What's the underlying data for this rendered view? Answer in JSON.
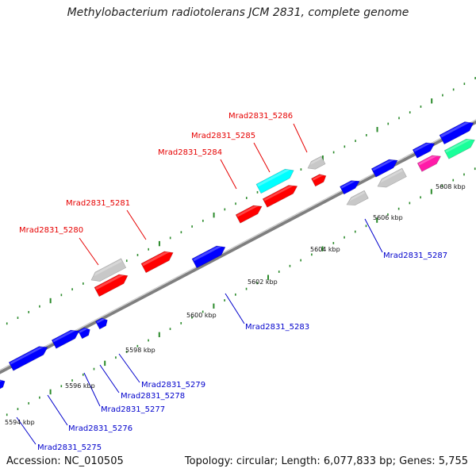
{
  "title": "Methylobacterium radiotolerans JCM 2831, complete genome",
  "accession": "Accession: NC_010505",
  "topology": "Topology: circular; Length: 6,077,833 bp; Genes: 5,755",
  "colors": {
    "backbone": "#888888",
    "ticks": "#2a8a2a",
    "red": "#ff0000",
    "blue": "#0000ff",
    "gray": "#c8c8c8",
    "cyan": "#00ffff",
    "magenta": "#ff1aa8",
    "green": "#1aff9a"
  },
  "kbp_labels": [
    "5594 kbp",
    "5596 kbp",
    "5598 kbp",
    "5600 kbp",
    "5602 kbp",
    "5604 kbp",
    "5606 kbp",
    "5608 kbp"
  ],
  "gene_labels_top": [
    "Mrad2831_5280",
    "Mrad2831_5281",
    "Mrad2831_5284",
    "Mrad2831_5285",
    "Mrad2831_5286"
  ],
  "gene_labels_bottom": [
    "Mrad2831_5275",
    "Mrad2831_5276",
    "Mrad2831_5277",
    "Mrad2831_5278",
    "Mrad2831_5279",
    "Mrad2831_5283",
    "Mrad2831_5287"
  ],
  "features": [
    {
      "color": "blue",
      "strand": "outer"
    },
    {
      "color": "blue",
      "strand": "outer"
    },
    {
      "color": "blue",
      "strand": "outer"
    },
    {
      "color": "blue",
      "strand": "outer"
    },
    {
      "color": "blue",
      "strand": "outer"
    },
    {
      "color": "red",
      "strand": "inner"
    },
    {
      "color": "gray",
      "strand": "inner"
    },
    {
      "color": "red",
      "strand": "inner"
    },
    {
      "color": "blue",
      "strand": "outer"
    },
    {
      "color": "red",
      "strand": "inner"
    },
    {
      "color": "red",
      "strand": "inner"
    },
    {
      "color": "cyan",
      "strand": "inner"
    },
    {
      "color": "red",
      "strand": "inner"
    },
    {
      "color": "gray",
      "strand": "inner"
    },
    {
      "color": "blue",
      "strand": "outer"
    },
    {
      "color": "gray",
      "strand": "outer"
    },
    {
      "color": "blue",
      "strand": "outer"
    },
    {
      "color": "gray",
      "strand": "outer"
    },
    {
      "color": "blue",
      "strand": "outer"
    },
    {
      "color": "magenta",
      "strand": "inner"
    },
    {
      "color": "blue",
      "strand": "outer"
    },
    {
      "color": "green",
      "strand": "inner"
    }
  ]
}
